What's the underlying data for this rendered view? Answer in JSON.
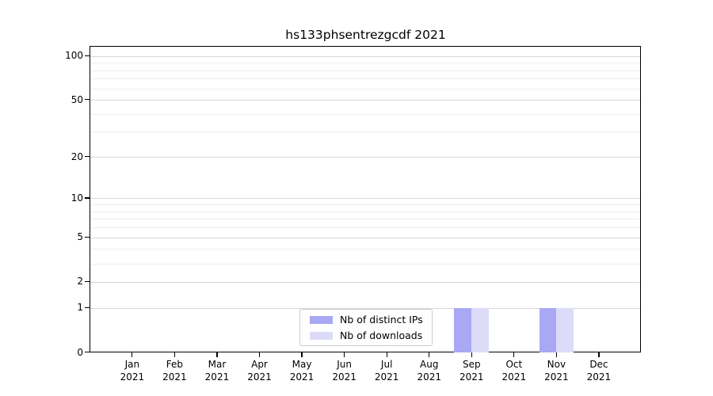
{
  "chart_data": {
    "type": "bar",
    "title": "hs133phsentrezgcdf 2021",
    "scale": "log1p",
    "categories": [
      "Jan",
      "Feb",
      "Mar",
      "Apr",
      "May",
      "Jun",
      "Jul",
      "Aug",
      "Sep",
      "Oct",
      "Nov",
      "Dec"
    ],
    "tick_year": "2021",
    "series": [
      {
        "name": "Nb of distinct IPs",
        "color": "#a8a8f4",
        "values": [
          0,
          0,
          0,
          0,
          0,
          0,
          0,
          0,
          1,
          0,
          1,
          0
        ]
      },
      {
        "name": "Nb of downloads",
        "color": "#dcdcf8",
        "values": [
          0,
          0,
          0,
          0,
          0,
          0,
          0,
          0,
          1,
          0,
          1,
          0
        ]
      }
    ],
    "yticks": [
      0,
      1,
      2,
      5,
      10,
      20,
      50,
      100
    ],
    "yminorticks": [
      3,
      4,
      6,
      7,
      8,
      9,
      30,
      40,
      60,
      70,
      80,
      90
    ],
    "ylim": [
      0,
      117
    ],
    "grid": "horizontal-only",
    "legend_position": "lower center",
    "colors": {
      "spine": "#000000",
      "grid_major": "#d6d6d6",
      "grid_minor": "#eeeeee",
      "text": "#000000",
      "legend_border": "#cccccc",
      "background": "#ffffff"
    }
  }
}
